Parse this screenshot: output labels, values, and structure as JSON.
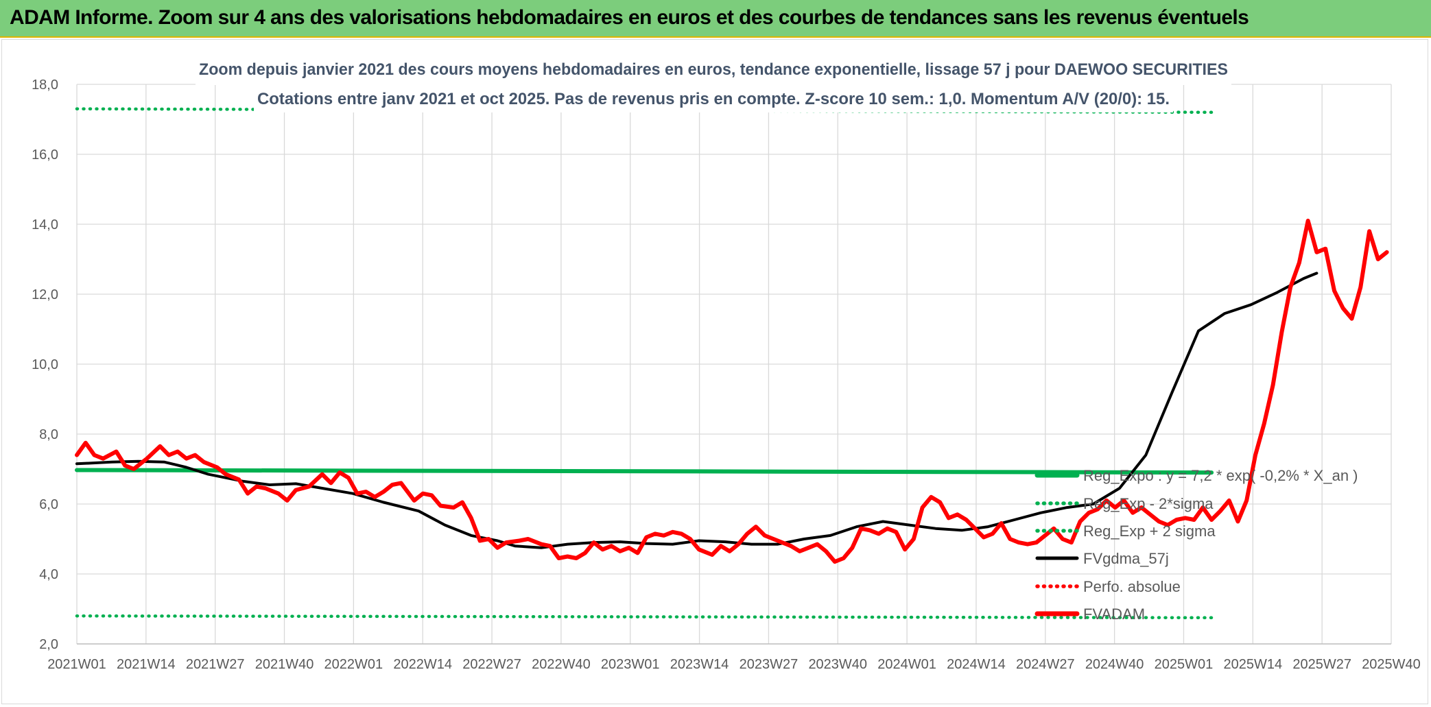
{
  "header": {
    "title": "ADAM Informe. Zoom sur 4 ans des valorisations hebdomadaires en euros et des courbes de tendances sans les revenus éventuels"
  },
  "chart_data": {
    "type": "line",
    "title_line1": "Zoom depuis janvier 2021 des cours moyens hebdomadaires en euros, tendance exponentielle, lissage 57 j pour DAEWOO SECURITIES",
    "title_line2": "Cotations entre janv 2021 et oct 2025. Pas de revenus pris en compte. Z-score 10 sem.: 1,0. Momentum A/V (20/0): 15.",
    "x_ticks": [
      "2021W01",
      "2021W14",
      "2021W27",
      "2021W40",
      "2022W01",
      "2022W14",
      "2022W27",
      "2022W40",
      "2023W01",
      "2023W14",
      "2023W27",
      "2023W40",
      "2024W01",
      "2024W14",
      "2024W27",
      "2024W40",
      "2025W01",
      "2025W14",
      "2025W27",
      "2025W40"
    ],
    "y_ticks": [
      "2,0",
      "4,0",
      "6,0",
      "8,0",
      "10,0",
      "12,0",
      "14,0",
      "16,0",
      "18,0"
    ],
    "ylim": [
      2,
      18
    ],
    "grid": true,
    "legend_position": "right",
    "series": [
      {
        "name": "Reg_Expo : y = 7,2 * exp( -0,2% * X_an )",
        "color": "#00b050",
        "style": "solid-thick",
        "points": [
          [
            0,
            6.97
          ],
          [
            120,
            6.94
          ],
          [
            259,
            6.9
          ]
        ]
      },
      {
        "name": "Reg_Exp - 2*sigma",
        "color": "#00b050",
        "style": "dotted",
        "points": [
          [
            0,
            2.8
          ],
          [
            259,
            2.75
          ]
        ]
      },
      {
        "name": "Reg_Exp + 2 sigma",
        "color": "#00b050",
        "style": "dotted",
        "points": [
          [
            0,
            17.3
          ],
          [
            259,
            17.2
          ]
        ]
      },
      {
        "name": "FVgdma_57j",
        "color": "#000000",
        "style": "solid",
        "points": [
          [
            0,
            7.15
          ],
          [
            8,
            7.2
          ],
          [
            14,
            7.22
          ],
          [
            20,
            7.2
          ],
          [
            25,
            7.05
          ],
          [
            30,
            6.85
          ],
          [
            38,
            6.65
          ],
          [
            44,
            6.55
          ],
          [
            50,
            6.58
          ],
          [
            56,
            6.45
          ],
          [
            63,
            6.3
          ],
          [
            70,
            6.05
          ],
          [
            78,
            5.8
          ],
          [
            84,
            5.4
          ],
          [
            90,
            5.1
          ],
          [
            96,
            4.95
          ],
          [
            100,
            4.8
          ],
          [
            106,
            4.75
          ],
          [
            112,
            4.85
          ],
          [
            118,
            4.9
          ],
          [
            124,
            4.92
          ],
          [
            130,
            4.87
          ],
          [
            136,
            4.85
          ],
          [
            142,
            4.95
          ],
          [
            148,
            4.92
          ],
          [
            154,
            4.85
          ],
          [
            160,
            4.85
          ],
          [
            166,
            5.0
          ],
          [
            172,
            5.1
          ],
          [
            178,
            5.35
          ],
          [
            184,
            5.5
          ],
          [
            190,
            5.4
          ],
          [
            196,
            5.3
          ],
          [
            202,
            5.25
          ],
          [
            208,
            5.35
          ],
          [
            214,
            5.55
          ],
          [
            220,
            5.75
          ],
          [
            226,
            5.9
          ],
          [
            232,
            6.0
          ],
          [
            238,
            6.45
          ],
          [
            244,
            7.4
          ],
          [
            250,
            9.2
          ],
          [
            256,
            10.95
          ],
          [
            262,
            11.45
          ],
          [
            268,
            11.7
          ],
          [
            274,
            12.05
          ],
          [
            280,
            12.45
          ],
          [
            283,
            12.6
          ]
        ]
      },
      {
        "name": "Perfo. absolue",
        "color": "#ff0000",
        "style": "dotted",
        "points": []
      },
      {
        "name": "FVADAM",
        "color": "#ff0000",
        "style": "solid-thick",
        "points": [
          [
            0,
            7.4
          ],
          [
            2,
            7.75
          ],
          [
            4,
            7.4
          ],
          [
            6,
            7.3
          ],
          [
            9,
            7.5
          ],
          [
            11,
            7.1
          ],
          [
            13,
            7.0
          ],
          [
            16,
            7.3
          ],
          [
            19,
            7.65
          ],
          [
            21,
            7.4
          ],
          [
            23,
            7.5
          ],
          [
            25,
            7.3
          ],
          [
            27,
            7.4
          ],
          [
            29,
            7.2
          ],
          [
            32,
            7.05
          ],
          [
            34,
            6.85
          ],
          [
            37,
            6.7
          ],
          [
            39,
            6.3
          ],
          [
            41,
            6.5
          ],
          [
            43,
            6.45
          ],
          [
            46,
            6.3
          ],
          [
            48,
            6.1
          ],
          [
            50,
            6.4
          ],
          [
            53,
            6.5
          ],
          [
            56,
            6.85
          ],
          [
            58,
            6.6
          ],
          [
            60,
            6.9
          ],
          [
            62,
            6.75
          ],
          [
            64,
            6.3
          ],
          [
            66,
            6.35
          ],
          [
            68,
            6.2
          ],
          [
            70,
            6.35
          ],
          [
            72,
            6.55
          ],
          [
            74,
            6.6
          ],
          [
            77,
            6.1
          ],
          [
            79,
            6.3
          ],
          [
            81,
            6.25
          ],
          [
            83,
            5.95
          ],
          [
            86,
            5.9
          ],
          [
            88,
            6.05
          ],
          [
            90,
            5.6
          ],
          [
            92,
            4.95
          ],
          [
            94,
            5.0
          ],
          [
            96,
            4.75
          ],
          [
            98,
            4.9
          ],
          [
            101,
            4.95
          ],
          [
            103,
            5.0
          ],
          [
            106,
            4.85
          ],
          [
            108,
            4.8
          ],
          [
            110,
            4.45
          ],
          [
            112,
            4.5
          ],
          [
            114,
            4.45
          ],
          [
            116,
            4.6
          ],
          [
            118,
            4.9
          ],
          [
            120,
            4.7
          ],
          [
            122,
            4.8
          ],
          [
            124,
            4.65
          ],
          [
            126,
            4.75
          ],
          [
            128,
            4.6
          ],
          [
            130,
            5.05
          ],
          [
            132,
            5.15
          ],
          [
            134,
            5.1
          ],
          [
            136,
            5.2
          ],
          [
            138,
            5.15
          ],
          [
            140,
            5.0
          ],
          [
            142,
            4.7
          ],
          [
            145,
            4.55
          ],
          [
            147,
            4.8
          ],
          [
            149,
            4.65
          ],
          [
            151,
            4.85
          ],
          [
            153,
            5.15
          ],
          [
            155,
            5.35
          ],
          [
            157,
            5.1
          ],
          [
            159,
            5.0
          ],
          [
            161,
            4.9
          ],
          [
            163,
            4.8
          ],
          [
            165,
            4.65
          ],
          [
            167,
            4.75
          ],
          [
            169,
            4.85
          ],
          [
            171,
            4.65
          ],
          [
            173,
            4.35
          ],
          [
            175,
            4.45
          ],
          [
            177,
            4.75
          ],
          [
            179,
            5.3
          ],
          [
            181,
            5.25
          ],
          [
            183,
            5.15
          ],
          [
            185,
            5.3
          ],
          [
            187,
            5.2
          ],
          [
            189,
            4.7
          ],
          [
            191,
            5.0
          ],
          [
            193,
            5.9
          ],
          [
            195,
            6.2
          ],
          [
            197,
            6.05
          ],
          [
            199,
            5.6
          ],
          [
            201,
            5.7
          ],
          [
            203,
            5.55
          ],
          [
            205,
            5.3
          ],
          [
            207,
            5.05
          ],
          [
            209,
            5.15
          ],
          [
            211,
            5.45
          ],
          [
            213,
            5.0
          ],
          [
            215,
            4.9
          ],
          [
            217,
            4.85
          ],
          [
            219,
            4.9
          ],
          [
            221,
            5.1
          ],
          [
            223,
            5.3
          ],
          [
            225,
            5.0
          ],
          [
            227,
            4.9
          ],
          [
            229,
            5.5
          ],
          [
            231,
            5.75
          ],
          [
            233,
            5.85
          ],
          [
            235,
            6.1
          ],
          [
            237,
            5.9
          ],
          [
            239,
            6.1
          ],
          [
            241,
            5.75
          ],
          [
            243,
            5.9
          ],
          [
            245,
            5.7
          ],
          [
            247,
            5.5
          ],
          [
            249,
            5.4
          ],
          [
            251,
            5.55
          ],
          [
            253,
            5.6
          ],
          [
            255,
            5.55
          ],
          [
            257,
            5.9
          ],
          [
            259,
            5.55
          ],
          [
            261,
            5.8
          ],
          [
            263,
            6.1
          ],
          [
            265,
            5.5
          ],
          [
            267,
            6.1
          ],
          [
            269,
            7.4
          ],
          [
            271,
            8.3
          ],
          [
            273,
            9.4
          ],
          [
            275,
            10.9
          ],
          [
            277,
            12.2
          ],
          [
            279,
            12.9
          ],
          [
            281,
            14.1
          ],
          [
            283,
            13.2
          ],
          [
            285,
            13.3
          ],
          [
            287,
            12.1
          ],
          [
            289,
            11.6
          ],
          [
            291,
            11.3
          ],
          [
            293,
            12.2
          ],
          [
            295,
            13.8
          ],
          [
            297,
            13.0
          ],
          [
            299,
            13.2
          ]
        ]
      }
    ]
  }
}
